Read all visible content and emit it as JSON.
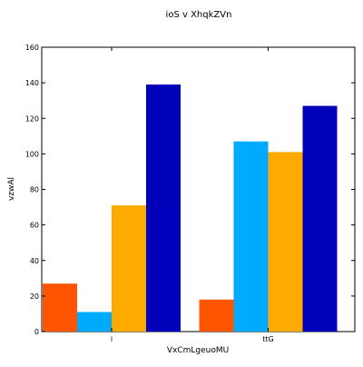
{
  "chart_data": {
    "type": "bar",
    "title": "ioS v XhqkZVn",
    "xlabel": "VxCmLgeuoMU",
    "ylabel": "vzwAl",
    "categories": [
      "i",
      "ttG"
    ],
    "ylim": [
      0,
      160
    ],
    "yticks": [
      0,
      20,
      40,
      60,
      80,
      100,
      120,
      140,
      160
    ],
    "grid": false,
    "legend": "none",
    "series": [
      {
        "values": [
          27,
          18
        ],
        "color": "#ff5500"
      },
      {
        "values": [
          11,
          107
        ],
        "color": "#00aaff"
      },
      {
        "values": [
          71,
          101
        ],
        "color": "#ffaa00"
      },
      {
        "values": [
          139,
          127
        ],
        "color": "#0000bb"
      }
    ]
  }
}
